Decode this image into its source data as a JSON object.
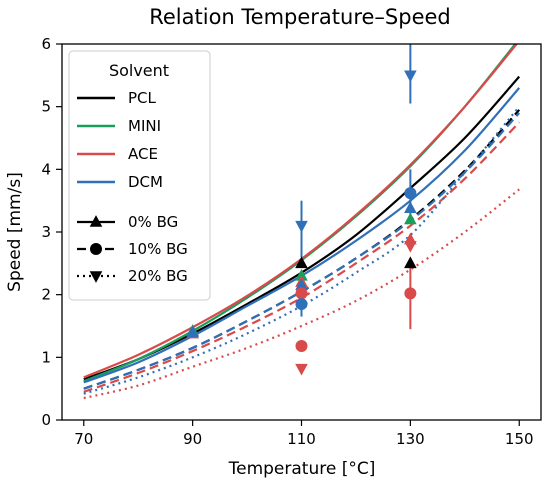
{
  "chart_data": {
    "type": "line",
    "title": "Relation Temperature–Speed",
    "xlabel": "Temperature [°C]",
    "ylabel": "Speed [mm/s]",
    "xlim": [
      66,
      154
    ],
    "ylim": [
      0,
      6
    ],
    "xticks": [
      70,
      90,
      110,
      130,
      150
    ],
    "yticks": [
      0,
      1,
      2,
      3,
      4,
      5,
      6
    ],
    "grid": false,
    "legend": {
      "placement": "top-left",
      "title": "Solvent",
      "solvents": [
        {
          "name": "PCL",
          "color": "#000000"
        },
        {
          "name": "MINI",
          "color": "#1a9e5c"
        },
        {
          "name": "ACE",
          "color": "#d94a4a"
        },
        {
          "name": "DCM",
          "color": "#3070b8"
        }
      ],
      "bg_levels": [
        {
          "name": "0% BG",
          "marker": "triangle-up",
          "dash": "solid"
        },
        {
          "name": "10% BG",
          "marker": "circle",
          "dash": "dashed"
        },
        {
          "name": "20% BG",
          "marker": "triangle-down",
          "dash": "dotted"
        }
      ]
    },
    "series": [
      {
        "solvent": "PCL",
        "bg": "0% BG",
        "color": "#000000",
        "dash": "solid",
        "x": [
          70,
          80,
          90,
          100,
          110,
          120,
          130,
          140,
          150
        ],
        "y": [
          0.65,
          0.97,
          1.38,
          1.85,
          2.35,
          2.95,
          3.7,
          4.5,
          5.48
        ]
      },
      {
        "solvent": "MINI",
        "bg": "0% BG",
        "color": "#1a9e5c",
        "dash": "solid",
        "x": [
          70,
          80,
          90,
          100,
          110,
          120,
          130,
          140,
          150
        ],
        "y": [
          0.62,
          0.97,
          1.42,
          1.95,
          2.55,
          3.25,
          4.05,
          5.0,
          6.08
        ]
      },
      {
        "solvent": "ACE",
        "bg": "0% BG",
        "color": "#d94a4a",
        "dash": "solid",
        "x": [
          70,
          80,
          90,
          100,
          110,
          120,
          130,
          140,
          150
        ],
        "y": [
          0.68,
          1.04,
          1.48,
          1.98,
          2.57,
          3.27,
          4.07,
          5.0,
          6.05
        ]
      },
      {
        "solvent": "DCM",
        "bg": "0% BG",
        "color": "#3070b8",
        "dash": "solid",
        "x": [
          70,
          80,
          90,
          100,
          110,
          120,
          130,
          140,
          150
        ],
        "y": [
          0.6,
          0.92,
          1.34,
          1.82,
          2.3,
          2.86,
          3.5,
          4.3,
          5.3
        ]
      },
      {
        "solvent": "PCL",
        "bg": "10% BG",
        "color": "#000000",
        "dash": "dashed",
        "x": [
          70,
          80,
          90,
          100,
          110,
          120,
          130,
          140,
          150
        ],
        "y": [
          0.5,
          0.8,
          1.15,
          1.58,
          2.05,
          2.58,
          3.2,
          3.98,
          4.95
        ]
      },
      {
        "solvent": "ACE",
        "bg": "10% BG",
        "color": "#d94a4a",
        "dash": "dashed",
        "x": [
          70,
          80,
          90,
          100,
          110,
          120,
          130,
          140,
          150
        ],
        "y": [
          0.45,
          0.75,
          1.1,
          1.5,
          1.95,
          2.5,
          3.1,
          3.85,
          4.75
        ]
      },
      {
        "solvent": "DCM",
        "bg": "10% BG",
        "color": "#3070b8",
        "dash": "dashed",
        "x": [
          70,
          80,
          90,
          100,
          110,
          120,
          130,
          140,
          150
        ],
        "y": [
          0.5,
          0.8,
          1.15,
          1.58,
          2.05,
          2.58,
          3.18,
          3.95,
          4.9
        ]
      },
      {
        "solvent": "ACE",
        "bg": "20% BG",
        "color": "#d94a4a",
        "dash": "dotted",
        "x": [
          70,
          80,
          90,
          100,
          110,
          120,
          130,
          140,
          150
        ],
        "y": [
          0.35,
          0.55,
          0.85,
          1.15,
          1.5,
          1.9,
          2.4,
          3.0,
          3.68
        ]
      },
      {
        "solvent": "DCM",
        "bg": "20% BG",
        "color": "#3070b8",
        "dash": "dotted",
        "x": [
          70,
          80,
          90,
          100,
          110,
          120,
          130,
          140,
          150
        ],
        "y": [
          0.42,
          0.68,
          1.0,
          1.38,
          1.82,
          2.35,
          2.95,
          3.95,
          5.0
        ]
      }
    ],
    "points": [
      {
        "solvent": "MINI",
        "bg": "0% BG",
        "marker": "triangle-up",
        "color": "#1a9e5c",
        "x": 90,
        "y": 1.42
      },
      {
        "solvent": "ACE",
        "bg": "0% BG",
        "marker": "triangle-up",
        "color": "#d94a4a",
        "x": 90,
        "y": 1.38
      },
      {
        "solvent": "DCM",
        "bg": "0% BG",
        "marker": "triangle-up",
        "color": "#3070b8",
        "x": 90,
        "y": 1.4
      },
      {
        "solvent": "PCL",
        "bg": "0% BG",
        "marker": "triangle-up",
        "color": "#000000",
        "x": 110,
        "y": 2.5
      },
      {
        "solvent": "MINI",
        "bg": "0% BG",
        "marker": "triangle-up",
        "color": "#1a9e5c",
        "x": 110,
        "y": 2.3
      },
      {
        "solvent": "ACE",
        "bg": "0% BG",
        "marker": "triangle-up",
        "color": "#d94a4a",
        "x": 110,
        "y": 2.2
      },
      {
        "solvent": "DCM",
        "bg": "0% BG",
        "marker": "triangle-up",
        "color": "#3070b8",
        "x": 110,
        "y": 2.15
      },
      {
        "solvent": "ACE",
        "bg": "10% BG",
        "marker": "circle",
        "color": "#d94a4a",
        "x": 110,
        "y": 2.02
      },
      {
        "solvent": "DCM",
        "bg": "10% BG",
        "marker": "circle",
        "color": "#3070b8",
        "x": 110,
        "y": 1.85,
        "err": [
          1.65,
          2.1
        ]
      },
      {
        "solvent": "ACE",
        "bg": "10% BG",
        "marker": "circle",
        "color": "#d94a4a",
        "x": 110,
        "y": 1.18
      },
      {
        "solvent": "ACE",
        "bg": "20% BG",
        "marker": "triangle-down",
        "color": "#d94a4a",
        "x": 110,
        "y": 0.82
      },
      {
        "solvent": "DCM",
        "bg": "20% BG",
        "marker": "triangle-down",
        "color": "#3070b8",
        "x": 110,
        "y": 3.1,
        "err": [
          2.6,
          3.5
        ]
      },
      {
        "solvent": "PCL",
        "bg": "0% BG",
        "marker": "triangle-up",
        "color": "#000000",
        "x": 130,
        "y": 2.5
      },
      {
        "solvent": "ACE",
        "bg": "10% BG",
        "marker": "circle",
        "color": "#d94a4a",
        "x": 130,
        "y": 2.02,
        "err": [
          1.45,
          2.55
        ]
      },
      {
        "solvent": "ACE",
        "bg": "0% BG",
        "marker": "triangle-up",
        "color": "#d94a4a",
        "x": 130,
        "y": 2.88
      },
      {
        "solvent": "ACE",
        "bg": "20% BG",
        "marker": "triangle-down",
        "color": "#d94a4a",
        "x": 130,
        "y": 2.78
      },
      {
        "solvent": "MINI",
        "bg": "0% BG",
        "marker": "triangle-up",
        "color": "#1a9e5c",
        "x": 130,
        "y": 3.2
      },
      {
        "solvent": "DCM",
        "bg": "0% BG",
        "marker": "triangle-up",
        "color": "#3070b8",
        "x": 130,
        "y": 3.38
      },
      {
        "solvent": "DCM",
        "bg": "10% BG",
        "marker": "circle",
        "color": "#3070b8",
        "x": 130,
        "y": 3.62,
        "err": [
          3.2,
          4.0
        ]
      },
      {
        "solvent": "DCM",
        "bg": "20% BG",
        "marker": "triangle-down",
        "color": "#3070b8",
        "x": 130,
        "y": 5.5,
        "err": [
          5.05,
          6.0
        ]
      }
    ]
  }
}
